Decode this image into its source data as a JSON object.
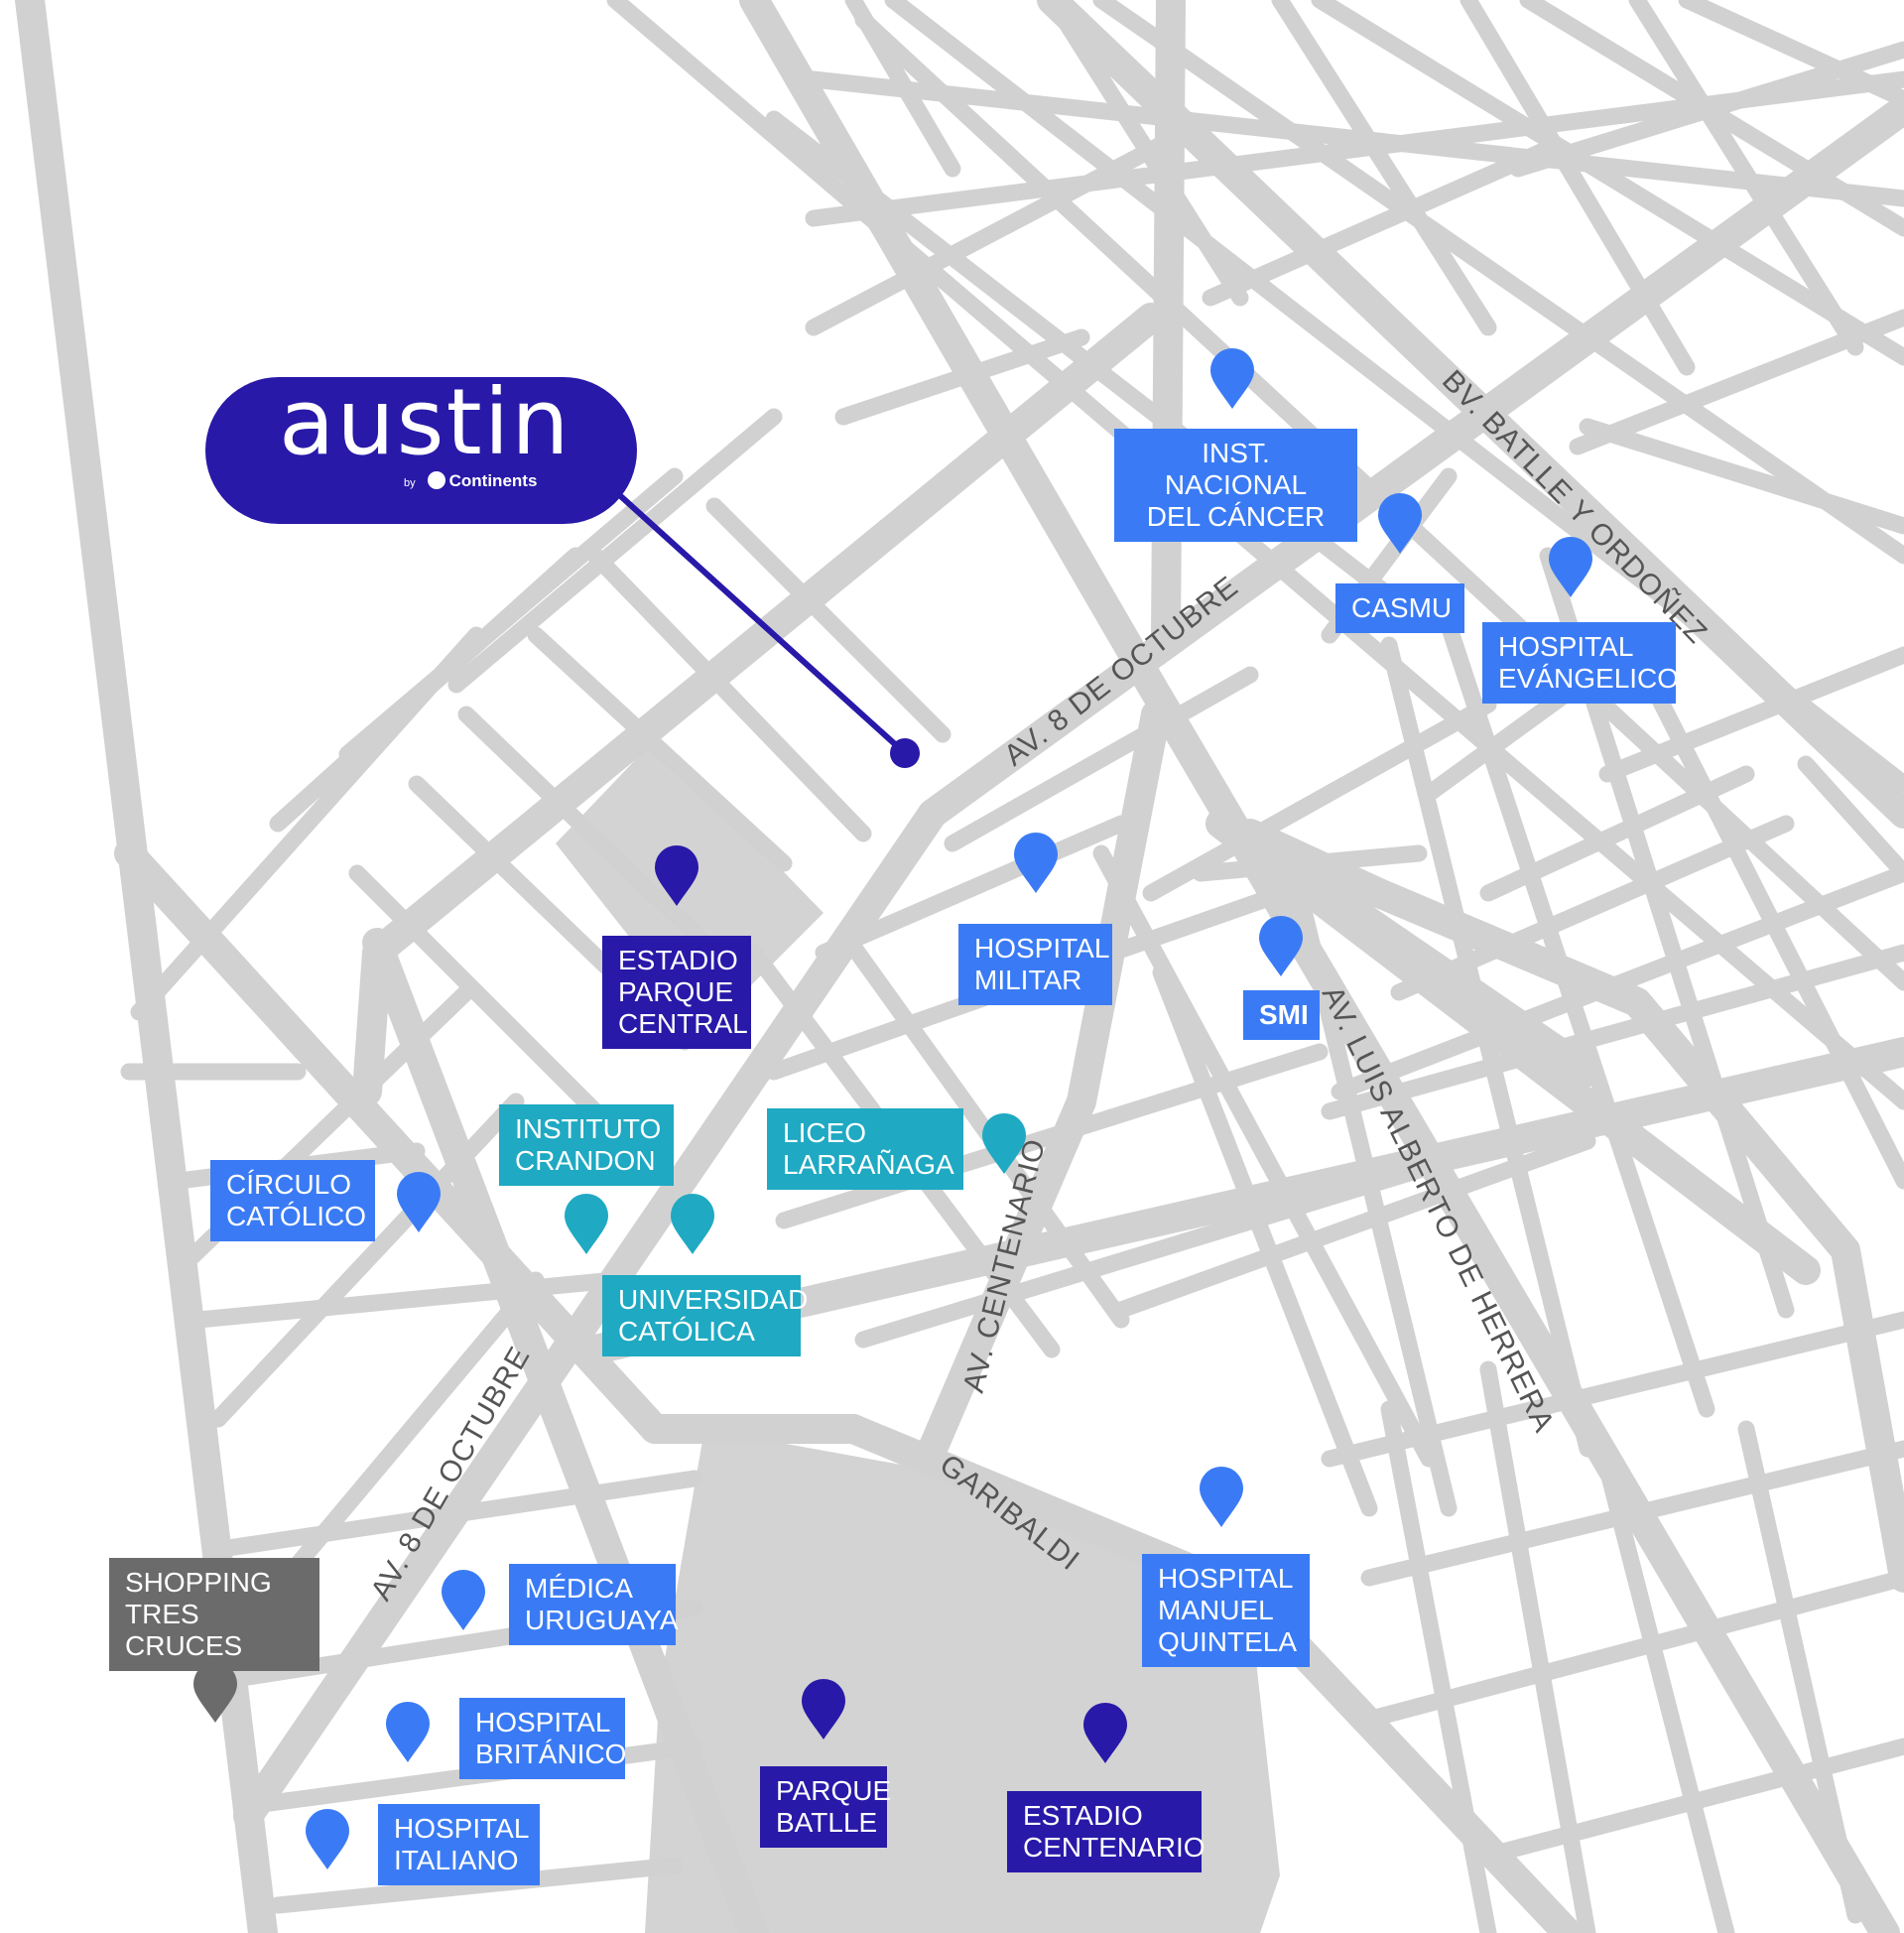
{
  "colors": {
    "background": "#ffffff",
    "street": "#d1d1d1",
    "park_area": "#d3d3d3",
    "street_label_text": "#555555",
    "health": "#3a7bf5",
    "landmark": "#2819a8",
    "education": "#1fa9c2",
    "shopping": "#6b6b6b",
    "brand": "#2819a8"
  },
  "brand": {
    "name": "austin",
    "by": "by",
    "partner": "Continents"
  },
  "streets": [
    {
      "id": "av-8-octubre-north",
      "label": "AV. 8 DE OCTUBRE"
    },
    {
      "id": "av-8-octubre-south",
      "label": "AV. 8 DE OCTUBRE"
    },
    {
      "id": "bv-batlle",
      "label": "BV. BATLLE Y ORDOÑEZ"
    },
    {
      "id": "av-luis-alberto",
      "label": "AV. LUIS ALBERTO DE HERRERA"
    },
    {
      "id": "av-centenario",
      "label": "AV. CENTENARIO"
    },
    {
      "id": "garibaldi",
      "label": "GARIBALDI"
    }
  ],
  "places": [
    {
      "id": "inst-cancer",
      "category": "health",
      "lines": [
        "INST. NACIONAL",
        "DEL CÁNCER"
      ]
    },
    {
      "id": "casmu",
      "category": "health",
      "lines": [
        "CASMU"
      ]
    },
    {
      "id": "hospital-evangelico",
      "category": "health",
      "lines": [
        "HOSPITAL",
        "EVÁNGELICO"
      ]
    },
    {
      "id": "hospital-militar",
      "category": "health",
      "lines": [
        "HOSPITAL",
        "MILITAR"
      ]
    },
    {
      "id": "smi",
      "category": "health",
      "lines": [
        "SMI"
      ]
    },
    {
      "id": "estadio-parque-central",
      "category": "landmark",
      "lines": [
        "ESTADIO",
        "PARQUE",
        "CENTRAL"
      ]
    },
    {
      "id": "instituto-crandon",
      "category": "education",
      "lines": [
        "INSTITUTO",
        "CRANDON"
      ]
    },
    {
      "id": "liceo-larranaga",
      "category": "education",
      "lines": [
        "LICEO",
        "LARRAÑAGA"
      ]
    },
    {
      "id": "circulo-catolico",
      "category": "health",
      "lines": [
        "CÍRCULO",
        "CATÓLICO"
      ]
    },
    {
      "id": "universidad-catolica",
      "category": "education",
      "lines": [
        "UNIVERSIDAD",
        "CATÓLICA"
      ]
    },
    {
      "id": "shopping-tres-cruces",
      "category": "shopping",
      "lines": [
        "SHOPPING",
        "TRES CRUCES"
      ]
    },
    {
      "id": "medica-uruguaya",
      "category": "health",
      "lines": [
        "MÉDICA",
        "URUGUAYA"
      ]
    },
    {
      "id": "hospital-manuel-quintela",
      "category": "health",
      "lines": [
        "HOSPITAL",
        "MANUEL",
        "QUINTELA"
      ]
    },
    {
      "id": "hospital-britanico",
      "category": "health",
      "lines": [
        "HOSPITAL",
        "BRITÁNICO"
      ]
    },
    {
      "id": "parque-batlle",
      "category": "landmark",
      "lines": [
        "PARQUE",
        "BATLLE"
      ]
    },
    {
      "id": "estadio-centenario",
      "category": "landmark",
      "lines": [
        "ESTADIO",
        "CENTENARIO"
      ]
    },
    {
      "id": "hospital-italiano",
      "category": "health",
      "lines": [
        "HOSPITAL",
        "ITALIANO"
      ]
    }
  ]
}
